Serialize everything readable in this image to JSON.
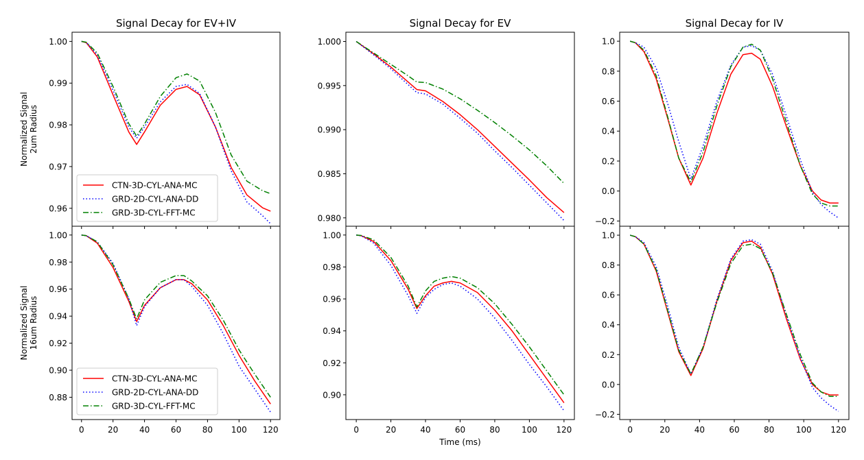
{
  "colors": {
    "CTN-3D-CYL-ANA-MC": "#ff0000",
    "GRD-2D-CYL-ANA-DD": "#0000ff",
    "GRD-3D-CYL-FFT-MC": "#008000"
  },
  "chart_data": [
    {
      "type": "line",
      "row": 0,
      "col": 0,
      "title": "Signal Decay for EV+IV",
      "ylabel": [
        "Normalized Signal",
        "2um Radius"
      ],
      "xlabel": "",
      "xlim": [
        -6,
        126
      ],
      "ylim": [
        0.9557,
        1.0022
      ],
      "yticks": [
        0.96,
        0.97,
        0.98,
        0.99,
        1.0
      ],
      "ytick_labels": [
        "0.96",
        "0.97",
        "0.98",
        "0.99",
        "1.00"
      ],
      "xticks": [
        0,
        20,
        40,
        60,
        80,
        100,
        120
      ],
      "xtick_labels": [],
      "legend": {
        "loc": "lower-left",
        "entries": [
          "CTN-3D-CYL-ANA-MC",
          "GRD-2D-CYL-ANA-DD",
          "GRD-3D-CYL-FFT-MC"
        ]
      },
      "series": [
        {
          "name": "CTN-3D-CYL-ANA-MC",
          "style": "solid",
          "x": [
            0,
            3,
            10,
            20,
            30,
            35,
            40,
            50,
            60,
            67,
            75,
            85,
            95,
            105,
            115,
            120
          ],
          "y": [
            1.0,
            0.9997,
            0.9963,
            0.9872,
            0.9783,
            0.9753,
            0.9783,
            0.9847,
            0.9885,
            0.9892,
            0.9872,
            0.9795,
            0.9698,
            0.9632,
            0.9601,
            0.9593
          ]
        },
        {
          "name": "GRD-2D-CYL-ANA-DD",
          "style": "dotted",
          "x": [
            0,
            3,
            10,
            20,
            30,
            35,
            40,
            50,
            60,
            67,
            75,
            85,
            95,
            105,
            115,
            120
          ],
          "y": [
            1.0,
            0.9998,
            0.9968,
            0.9883,
            0.9795,
            0.9768,
            0.9795,
            0.9855,
            0.9892,
            0.9897,
            0.9875,
            0.9795,
            0.969,
            0.9615,
            0.9582,
            0.9563
          ]
        },
        {
          "name": "GRD-3D-CYL-FFT-MC",
          "style": "dashdot",
          "x": [
            0,
            3,
            10,
            20,
            30,
            35,
            40,
            50,
            60,
            67,
            75,
            85,
            95,
            105,
            115,
            120
          ],
          "y": [
            1.0,
            0.9998,
            0.9972,
            0.9892,
            0.9803,
            0.9773,
            0.9802,
            0.9868,
            0.9913,
            0.9922,
            0.9905,
            0.983,
            0.9728,
            0.9665,
            0.9642,
            0.9635
          ]
        }
      ]
    },
    {
      "type": "line",
      "row": 0,
      "col": 1,
      "title": "Signal Decay for EV",
      "ylabel": [],
      "xlabel": "",
      "xlim": [
        -6,
        126
      ],
      "ylim": [
        0.97905,
        1.00105
      ],
      "yticks": [
        0.98,
        0.985,
        0.99,
        0.995,
        1.0
      ],
      "ytick_labels": [
        "0.980",
        "0.985",
        "0.990",
        "0.995",
        "1.000"
      ],
      "xticks": [
        0,
        20,
        40,
        60,
        80,
        100,
        120
      ],
      "xtick_labels": [],
      "legend": null,
      "series": [
        {
          "name": "CTN-3D-CYL-ANA-MC",
          "style": "solid",
          "x": [
            0,
            10,
            20,
            30,
            35,
            40,
            50,
            60,
            70,
            80,
            90,
            100,
            110,
            120
          ],
          "y": [
            1.0,
            0.9986,
            0.9971,
            0.9954,
            0.99455,
            0.9944,
            0.9932,
            0.9917,
            0.99,
            0.9881,
            0.9862,
            0.9843,
            0.9823,
            0.9806
          ]
        },
        {
          "name": "GRD-2D-CYL-ANA-DD",
          "style": "dotted",
          "x": [
            0,
            10,
            20,
            30,
            35,
            40,
            50,
            60,
            70,
            80,
            90,
            100,
            110,
            120
          ],
          "y": [
            1.0,
            0.9985,
            0.9969,
            0.9951,
            0.9942,
            0.99405,
            0.9929,
            0.9913,
            0.9896,
            0.9876,
            0.9857,
            0.9837,
            0.9817,
            0.9797
          ]
        },
        {
          "name": "GRD-3D-CYL-FFT-MC",
          "style": "dashdot",
          "x": [
            0,
            10,
            20,
            30,
            35,
            40,
            50,
            60,
            70,
            80,
            90,
            100,
            110,
            120
          ],
          "y": [
            1.0,
            0.9987,
            0.9974,
            0.9961,
            0.9954,
            0.99535,
            0.9946,
            0.9935,
            0.9922,
            0.9908,
            0.9893,
            0.9877,
            0.9859,
            0.9839
          ]
        }
      ]
    },
    {
      "type": "line",
      "row": 0,
      "col": 2,
      "title": "Signal Decay for IV",
      "ylabel": [],
      "xlabel": "",
      "xlim": [
        -6,
        126
      ],
      "ylim": [
        -0.235,
        1.06
      ],
      "yticks": [
        -0.2,
        0.0,
        0.2,
        0.4,
        0.6,
        0.8,
        1.0
      ],
      "ytick_labels": [
        "−0.2",
        "0.0",
        "0.2",
        "0.4",
        "0.6",
        "0.8",
        "1.0"
      ],
      "xticks": [
        0,
        20,
        40,
        60,
        80,
        100,
        120
      ],
      "xtick_labels": [],
      "legend": null,
      "series": [
        {
          "name": "CTN-3D-CYL-ANA-MC",
          "style": "solid",
          "x": [
            0,
            3,
            8,
            15,
            22,
            28,
            35,
            42,
            50,
            58,
            65,
            70,
            75,
            82,
            90,
            98,
            105,
            110,
            115,
            120
          ],
          "y": [
            1.0,
            0.99,
            0.93,
            0.75,
            0.47,
            0.22,
            0.04,
            0.22,
            0.52,
            0.78,
            0.91,
            0.92,
            0.88,
            0.7,
            0.43,
            0.17,
            0.0,
            -0.06,
            -0.08,
            -0.08
          ]
        },
        {
          "name": "GRD-2D-CYL-ANA-DD",
          "style": "dotted",
          "x": [
            0,
            3,
            8,
            15,
            22,
            28,
            35,
            42,
            50,
            58,
            65,
            70,
            75,
            82,
            90,
            98,
            105,
            110,
            115,
            120
          ],
          "y": [
            1.0,
            0.99,
            0.96,
            0.82,
            0.57,
            0.33,
            0.08,
            0.3,
            0.6,
            0.84,
            0.96,
            0.97,
            0.94,
            0.78,
            0.5,
            0.21,
            -0.01,
            -0.09,
            -0.14,
            -0.18
          ]
        },
        {
          "name": "GRD-3D-CYL-FFT-MC",
          "style": "dashdot",
          "x": [
            0,
            3,
            8,
            15,
            22,
            28,
            35,
            42,
            50,
            58,
            65,
            70,
            75,
            82,
            90,
            98,
            105,
            110,
            115,
            120
          ],
          "y": [
            1.0,
            0.99,
            0.94,
            0.77,
            0.48,
            0.22,
            0.06,
            0.26,
            0.57,
            0.83,
            0.96,
            0.98,
            0.94,
            0.75,
            0.46,
            0.17,
            -0.02,
            -0.08,
            -0.1,
            -0.1
          ]
        }
      ]
    },
    {
      "type": "line",
      "row": 1,
      "col": 0,
      "title": "",
      "ylabel": [
        "Normalized Signal",
        "16um Radius"
      ],
      "xlabel": "",
      "xlim": [
        -6,
        126
      ],
      "ylim": [
        0.8635,
        1.0065
      ],
      "yticks": [
        0.88,
        0.9,
        0.92,
        0.94,
        0.96,
        0.98,
        1.0
      ],
      "ytick_labels": [
        "0.88",
        "0.90",
        "0.92",
        "0.94",
        "0.96",
        "0.98",
        "1.00"
      ],
      "xticks": [
        0,
        20,
        40,
        60,
        80,
        100,
        120
      ],
      "xtick_labels": [
        "0",
        "20",
        "40",
        "60",
        "80",
        "100",
        "120"
      ],
      "legend": {
        "loc": "lower-left",
        "entries": [
          "CTN-3D-CYL-ANA-MC",
          "GRD-2D-CYL-ANA-DD",
          "GRD-3D-CYL-FFT-MC"
        ]
      },
      "series": [
        {
          "name": "CTN-3D-CYL-ANA-MC",
          "style": "solid",
          "x": [
            0,
            3,
            10,
            20,
            30,
            35,
            40,
            50,
            60,
            65,
            70,
            80,
            90,
            100,
            110,
            120
          ],
          "y": [
            1.0,
            0.9995,
            0.994,
            0.976,
            0.951,
            0.936,
            0.948,
            0.961,
            0.967,
            0.967,
            0.964,
            0.952,
            0.933,
            0.911,
            0.892,
            0.875
          ]
        },
        {
          "name": "GRD-2D-CYL-ANA-DD",
          "style": "dotted",
          "x": [
            0,
            3,
            10,
            20,
            30,
            35,
            40,
            50,
            60,
            65,
            70,
            80,
            90,
            100,
            110,
            120
          ],
          "y": [
            1.0,
            0.9995,
            0.995,
            0.979,
            0.953,
            0.933,
            0.947,
            0.961,
            0.967,
            0.967,
            0.962,
            0.948,
            0.927,
            0.903,
            0.886,
            0.869
          ]
        },
        {
          "name": "GRD-3D-CYL-FFT-MC",
          "style": "dashdot",
          "x": [
            0,
            3,
            10,
            20,
            30,
            35,
            40,
            50,
            60,
            65,
            70,
            80,
            90,
            100,
            110,
            120
          ],
          "y": [
            1.0,
            0.9995,
            0.995,
            0.978,
            0.953,
            0.938,
            0.952,
            0.965,
            0.97,
            0.97,
            0.966,
            0.955,
            0.937,
            0.915,
            0.897,
            0.88
          ]
        }
      ]
    },
    {
      "type": "line",
      "row": 1,
      "col": 1,
      "title": "",
      "ylabel": [],
      "xlabel": "Time (ms)",
      "xlim": [
        -6,
        126
      ],
      "ylim": [
        0.8845,
        1.0055
      ],
      "yticks": [
        0.9,
        0.92,
        0.94,
        0.96,
        0.98,
        1.0
      ],
      "ytick_labels": [
        "0.90",
        "0.92",
        "0.94",
        "0.96",
        "0.98",
        "1.00"
      ],
      "xticks": [
        0,
        20,
        40,
        60,
        80,
        100,
        120
      ],
      "xtick_labels": [
        "0",
        "20",
        "40",
        "60",
        "80",
        "100",
        "120"
      ],
      "legend": null,
      "series": [
        {
          "name": "CTN-3D-CYL-ANA-MC",
          "style": "solid",
          "x": [
            0,
            3,
            10,
            20,
            30,
            35,
            40,
            45,
            50,
            55,
            60,
            70,
            80,
            90,
            100,
            110,
            120
          ],
          "y": [
            1.0,
            0.9995,
            0.996,
            0.984,
            0.966,
            0.954,
            0.962,
            0.968,
            0.97,
            0.971,
            0.97,
            0.964,
            0.953,
            0.94,
            0.925,
            0.91,
            0.895
          ]
        },
        {
          "name": "GRD-2D-CYL-ANA-DD",
          "style": "dotted",
          "x": [
            0,
            3,
            10,
            20,
            30,
            35,
            40,
            45,
            50,
            55,
            60,
            70,
            80,
            90,
            100,
            110,
            120
          ],
          "y": [
            1.0,
            0.9995,
            0.995,
            0.981,
            0.962,
            0.951,
            0.961,
            0.966,
            0.969,
            0.97,
            0.968,
            0.96,
            0.948,
            0.934,
            0.919,
            0.905,
            0.89
          ]
        },
        {
          "name": "GRD-3D-CYL-FFT-MC",
          "style": "dashdot",
          "x": [
            0,
            3,
            10,
            20,
            30,
            35,
            40,
            45,
            50,
            55,
            60,
            70,
            80,
            90,
            100,
            110,
            120
          ],
          "y": [
            1.0,
            0.9997,
            0.997,
            0.986,
            0.968,
            0.955,
            0.965,
            0.971,
            0.973,
            0.974,
            0.973,
            0.967,
            0.957,
            0.944,
            0.93,
            0.915,
            0.9
          ]
        }
      ]
    },
    {
      "type": "line",
      "row": 1,
      "col": 2,
      "title": "",
      "ylabel": [],
      "xlabel": "",
      "xlim": [
        -6,
        126
      ],
      "ylim": [
        -0.235,
        1.06
      ],
      "yticks": [
        -0.2,
        0.0,
        0.2,
        0.4,
        0.6,
        0.8,
        1.0
      ],
      "ytick_labels": [
        "−0.2",
        "0.0",
        "0.2",
        "0.4",
        "0.6",
        "0.8",
        "1.0"
      ],
      "xticks": [
        0,
        20,
        40,
        60,
        80,
        100,
        120
      ],
      "xtick_labels": [
        "0",
        "20",
        "40",
        "60",
        "80",
        "100",
        "120"
      ],
      "legend": null,
      "series": [
        {
          "name": "CTN-3D-CYL-ANA-MC",
          "style": "solid",
          "x": [
            0,
            3,
            8,
            15,
            22,
            28,
            35,
            42,
            50,
            58,
            65,
            70,
            75,
            82,
            90,
            98,
            105,
            110,
            115,
            120
          ],
          "y": [
            1.0,
            0.99,
            0.94,
            0.76,
            0.47,
            0.22,
            0.06,
            0.24,
            0.56,
            0.83,
            0.95,
            0.96,
            0.92,
            0.74,
            0.44,
            0.17,
            0.0,
            -0.05,
            -0.07,
            -0.07
          ]
        },
        {
          "name": "GRD-2D-CYL-ANA-DD",
          "style": "dotted",
          "x": [
            0,
            3,
            8,
            15,
            22,
            28,
            35,
            42,
            50,
            58,
            65,
            70,
            75,
            82,
            90,
            98,
            105,
            110,
            115,
            120
          ],
          "y": [
            1.0,
            0.99,
            0.95,
            0.79,
            0.51,
            0.25,
            0.07,
            0.25,
            0.57,
            0.84,
            0.96,
            0.97,
            0.94,
            0.76,
            0.46,
            0.18,
            -0.02,
            -0.09,
            -0.14,
            -0.18
          ]
        },
        {
          "name": "GRD-3D-CYL-FFT-MC",
          "style": "dashdot",
          "x": [
            0,
            3,
            8,
            15,
            22,
            28,
            35,
            42,
            50,
            58,
            65,
            70,
            75,
            82,
            90,
            98,
            105,
            110,
            115,
            120
          ],
          "y": [
            1.0,
            0.99,
            0.94,
            0.77,
            0.48,
            0.23,
            0.07,
            0.25,
            0.55,
            0.81,
            0.93,
            0.94,
            0.91,
            0.75,
            0.47,
            0.2,
            0.01,
            -0.05,
            -0.08,
            -0.08
          ]
        }
      ]
    }
  ]
}
